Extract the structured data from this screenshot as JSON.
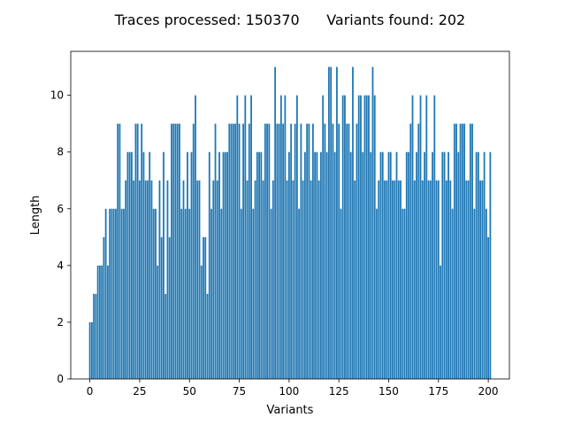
{
  "chart_data": {
    "type": "bar",
    "title": "Traces processed: 150370      Variants found: 202",
    "xlabel": "Variants",
    "ylabel": "Length",
    "xlim": [
      -9.6,
      210.6
    ],
    "ylim": [
      0,
      11.55
    ],
    "xticks": [
      0,
      25,
      50,
      75,
      100,
      125,
      150,
      175,
      200
    ],
    "yticks": [
      0,
      2,
      4,
      6,
      8,
      10
    ],
    "bar_color": "#1f77b4",
    "grid": false,
    "x": [
      0,
      1,
      2,
      3,
      4,
      5,
      6,
      7,
      8,
      9,
      10,
      11,
      12,
      13,
      14,
      15,
      16,
      17,
      18,
      19,
      20,
      21,
      22,
      23,
      24,
      25,
      26,
      27,
      28,
      29,
      30,
      31,
      32,
      33,
      34,
      35,
      36,
      37,
      38,
      39,
      40,
      41,
      42,
      43,
      44,
      45,
      46,
      47,
      48,
      49,
      50,
      51,
      52,
      53,
      54,
      55,
      56,
      57,
      58,
      59,
      60,
      61,
      62,
      63,
      64,
      65,
      66,
      67,
      68,
      69,
      70,
      71,
      72,
      73,
      74,
      75,
      76,
      77,
      78,
      79,
      80,
      81,
      82,
      83,
      84,
      85,
      86,
      87,
      88,
      89,
      90,
      91,
      92,
      93,
      94,
      95,
      96,
      97,
      98,
      99,
      100,
      101,
      102,
      103,
      104,
      105,
      106,
      107,
      108,
      109,
      110,
      111,
      112,
      113,
      114,
      115,
      116,
      117,
      118,
      119,
      120,
      121,
      122,
      123,
      124,
      125,
      126,
      127,
      128,
      129,
      130,
      131,
      132,
      133,
      134,
      135,
      136,
      137,
      138,
      139,
      140,
      141,
      142,
      143,
      144,
      145,
      146,
      147,
      148,
      149,
      150,
      151,
      152,
      153,
      154,
      155,
      156,
      157,
      158,
      159,
      160,
      161,
      162,
      163,
      164,
      165,
      166,
      167,
      168,
      169,
      170,
      171,
      172,
      173,
      174,
      175,
      176,
      177,
      178,
      179,
      180,
      181,
      182,
      183,
      184,
      185,
      186,
      187,
      188,
      189,
      190,
      191,
      192,
      193,
      194,
      195,
      196,
      197,
      198,
      199,
      200,
      201
    ],
    "values": [
      2,
      2,
      3,
      3,
      4,
      4,
      4,
      5,
      6,
      4,
      6,
      6,
      6,
      6,
      9,
      9,
      6,
      6,
      7,
      8,
      8,
      8,
      7,
      9,
      9,
      7,
      9,
      8,
      7,
      7,
      8,
      7,
      6,
      6,
      4,
      7,
      5,
      8,
      3,
      7,
      5,
      9,
      9,
      9,
      9,
      9,
      6,
      7,
      6,
      8,
      6,
      8,
      9,
      10,
      7,
      7,
      4,
      5,
      5,
      3,
      8,
      6,
      7,
      9,
      7,
      8,
      6,
      8,
      8,
      8,
      9,
      9,
      9,
      9,
      10,
      9,
      6,
      9,
      10,
      7,
      9,
      10,
      6,
      7,
      8,
      8,
      8,
      7,
      9,
      9,
      9,
      6,
      7,
      11,
      9,
      9,
      10,
      9,
      10,
      7,
      8,
      9,
      7,
      9,
      10,
      6,
      9,
      7,
      8,
      9,
      9,
      7,
      9,
      8,
      8,
      7,
      8,
      10,
      9,
      8,
      11,
      11,
      9,
      8,
      11,
      9,
      6,
      10,
      10,
      9,
      9,
      8,
      11,
      7,
      9,
      10,
      10,
      8,
      10,
      10,
      10,
      8,
      11,
      10,
      6,
      7,
      8,
      8,
      7,
      7,
      8,
      8,
      7,
      7,
      8,
      7,
      7,
      6,
      6,
      8,
      8,
      9,
      10,
      7,
      8,
      9,
      10,
      7,
      8,
      10,
      7,
      7,
      8,
      10,
      7,
      7,
      4,
      8,
      8,
      7,
      8,
      7,
      6,
      9,
      9,
      8,
      9,
      9,
      9,
      7,
      7,
      9,
      9,
      6,
      8,
      8,
      7,
      7,
      8,
      6,
      5,
      8
    ]
  }
}
